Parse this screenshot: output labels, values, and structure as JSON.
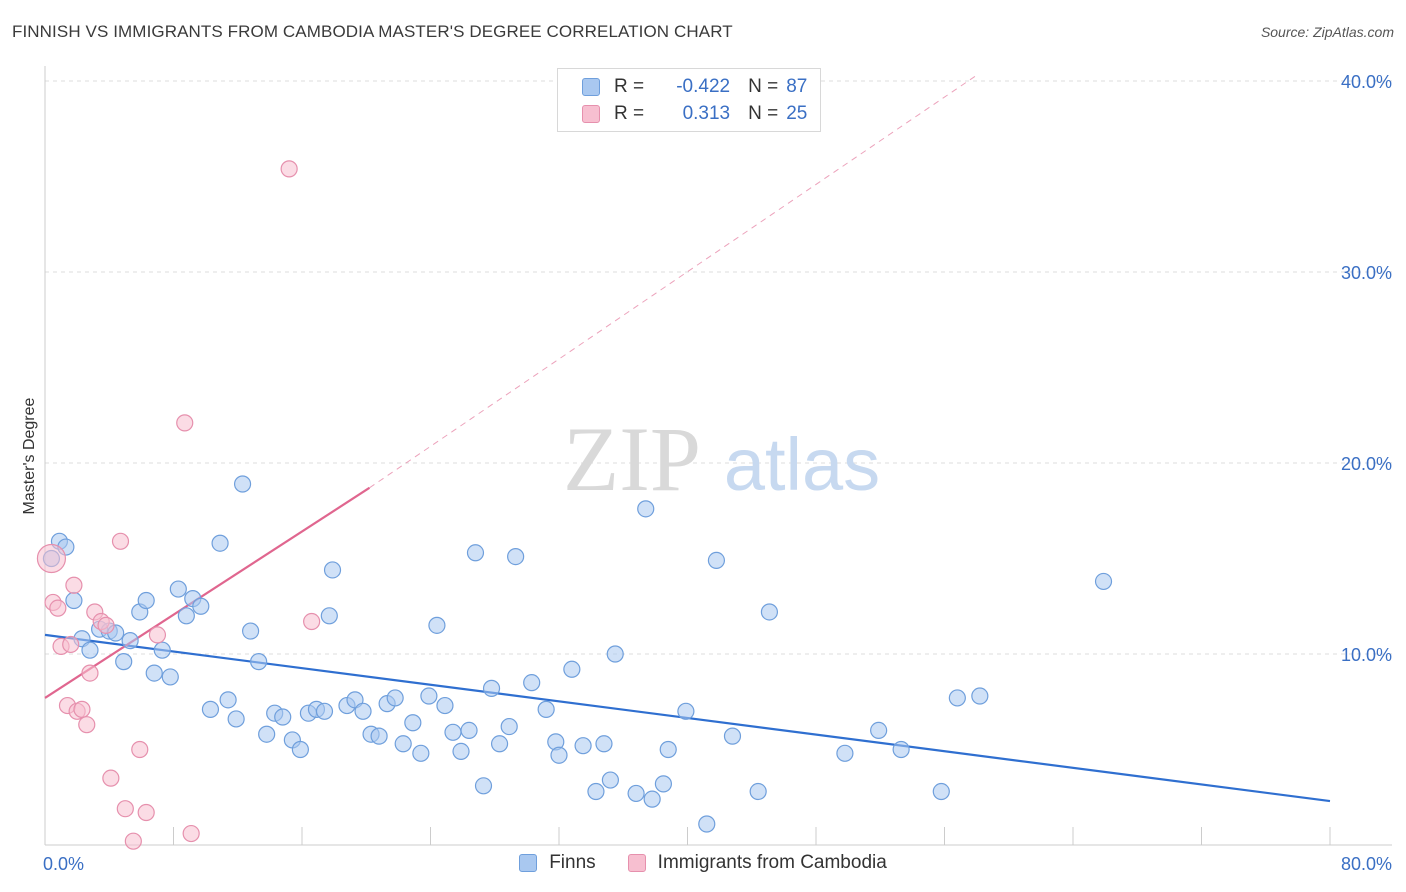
{
  "title": "FINNISH VS IMMIGRANTS FROM CAMBODIA MASTER'S DEGREE CORRELATION CHART",
  "source": "Source: ZipAtlas.com",
  "watermark": {
    "zip": "ZIP",
    "atlas": "atlas"
  },
  "legend": {
    "rows": [
      {
        "r_label": "R =",
        "r_value": "-0.422",
        "n_label": "N =",
        "n_value": "87"
      },
      {
        "r_label": "R =",
        "r_value": "0.313",
        "n_label": "N =",
        "n_value": "25"
      }
    ]
  },
  "colors": {
    "finns_fill": "#a9c8f0",
    "finns_stroke": "#6f9fdc",
    "finns_line": "#2f6fd0",
    "cambodia_fill": "#f7bfd0",
    "cambodia_stroke": "#e690ad",
    "cambodia_line": "#e0668f",
    "tick_label": "#3a6fc4",
    "grid": "#dddddd"
  },
  "chart_data": {
    "type": "scatter",
    "title": "FINNISH VS IMMIGRANTS FROM CAMBODIA MASTER'S DEGREE CORRELATION CHART",
    "xlabel": "",
    "ylabel": "Master's Degree",
    "xlim": [
      0,
      80
    ],
    "ylim": [
      0,
      40
    ],
    "x_tick_labels": [
      "0.0%",
      "80.0%"
    ],
    "y_ticks": [
      10,
      20,
      30,
      40
    ],
    "y_tick_labels": [
      "10.0%",
      "20.0%",
      "30.0%",
      "40.0%"
    ],
    "grid": true,
    "legend_position": "top-center",
    "series": [
      {
        "name": "Finns",
        "points": [
          [
            0.4,
            15.0
          ],
          [
            0.9,
            15.9
          ],
          [
            1.3,
            15.6
          ],
          [
            1.8,
            12.8
          ],
          [
            2.3,
            10.8
          ],
          [
            2.8,
            10.2
          ],
          [
            3.4,
            11.3
          ],
          [
            4.0,
            11.2
          ],
          [
            4.4,
            11.1
          ],
          [
            4.9,
            9.6
          ],
          [
            5.3,
            10.7
          ],
          [
            5.9,
            12.2
          ],
          [
            6.3,
            12.8
          ],
          [
            6.8,
            9.0
          ],
          [
            7.3,
            10.2
          ],
          [
            7.8,
            8.8
          ],
          [
            8.3,
            13.4
          ],
          [
            8.8,
            12.0
          ],
          [
            9.2,
            12.9
          ],
          [
            9.7,
            12.5
          ],
          [
            10.3,
            7.1
          ],
          [
            10.9,
            15.8
          ],
          [
            11.4,
            7.6
          ],
          [
            11.9,
            6.6
          ],
          [
            12.3,
            18.9
          ],
          [
            12.8,
            11.2
          ],
          [
            13.3,
            9.6
          ],
          [
            13.8,
            5.8
          ],
          [
            14.3,
            6.9
          ],
          [
            14.8,
            6.7
          ],
          [
            15.4,
            5.5
          ],
          [
            15.9,
            5.0
          ],
          [
            16.4,
            6.9
          ],
          [
            16.9,
            7.1
          ],
          [
            17.4,
            7.0
          ],
          [
            17.9,
            14.4
          ],
          [
            17.7,
            12.0
          ],
          [
            18.8,
            7.3
          ],
          [
            19.3,
            7.6
          ],
          [
            19.8,
            7.0
          ],
          [
            20.3,
            5.8
          ],
          [
            20.8,
            5.7
          ],
          [
            21.3,
            7.4
          ],
          [
            21.8,
            7.7
          ],
          [
            22.3,
            5.3
          ],
          [
            22.9,
            6.4
          ],
          [
            23.4,
            4.8
          ],
          [
            23.9,
            7.8
          ],
          [
            24.4,
            11.5
          ],
          [
            24.9,
            7.3
          ],
          [
            25.4,
            5.9
          ],
          [
            25.9,
            4.9
          ],
          [
            26.4,
            6.0
          ],
          [
            26.8,
            15.3
          ],
          [
            27.3,
            3.1
          ],
          [
            27.8,
            8.2
          ],
          [
            28.3,
            5.3
          ],
          [
            28.9,
            6.2
          ],
          [
            29.3,
            15.1
          ],
          [
            30.3,
            8.5
          ],
          [
            31.2,
            7.1
          ],
          [
            31.8,
            5.4
          ],
          [
            32.0,
            4.7
          ],
          [
            32.8,
            9.2
          ],
          [
            33.5,
            5.2
          ],
          [
            34.3,
            2.8
          ],
          [
            34.8,
            5.3
          ],
          [
            35.2,
            3.4
          ],
          [
            35.5,
            10.0
          ],
          [
            36.8,
            2.7
          ],
          [
            37.4,
            17.6
          ],
          [
            37.8,
            2.4
          ],
          [
            38.5,
            3.2
          ],
          [
            38.8,
            5.0
          ],
          [
            39.9,
            7.0
          ],
          [
            41.2,
            1.1
          ],
          [
            41.8,
            14.9
          ],
          [
            42.8,
            5.7
          ],
          [
            44.4,
            2.8
          ],
          [
            45.1,
            12.2
          ],
          [
            49.8,
            4.8
          ],
          [
            51.9,
            6.0
          ],
          [
            53.3,
            5.0
          ],
          [
            55.8,
            2.8
          ],
          [
            56.8,
            7.7
          ],
          [
            58.2,
            7.8
          ],
          [
            65.9,
            13.8
          ]
        ]
      },
      {
        "name": "Immigrants from Cambodia",
        "points": [
          [
            0.4,
            15.0
          ],
          [
            0.5,
            12.7
          ],
          [
            0.8,
            12.4
          ],
          [
            1.0,
            10.4
          ],
          [
            1.4,
            7.3
          ],
          [
            1.6,
            10.5
          ],
          [
            1.8,
            13.6
          ],
          [
            2.0,
            7.0
          ],
          [
            2.3,
            7.1
          ],
          [
            2.6,
            6.3
          ],
          [
            2.8,
            9.0
          ],
          [
            3.1,
            12.2
          ],
          [
            3.5,
            11.7
          ],
          [
            3.8,
            11.5
          ],
          [
            4.1,
            3.5
          ],
          [
            4.7,
            15.9
          ],
          [
            5.0,
            1.9
          ],
          [
            5.5,
            0.2
          ],
          [
            5.9,
            5.0
          ],
          [
            6.3,
            1.7
          ],
          [
            7.0,
            11.0
          ],
          [
            8.7,
            22.1
          ],
          [
            9.1,
            0.6
          ],
          [
            15.2,
            35.4
          ],
          [
            16.6,
            11.7
          ]
        ]
      }
    ],
    "trend_lines": [
      {
        "series": "Finns",
        "x": [
          0,
          80
        ],
        "y": [
          11.0,
          2.3
        ]
      },
      {
        "series": "Immigrants from Cambodia",
        "x": [
          0,
          20.2
        ],
        "y": [
          7.7,
          18.7
        ],
        "dashed_extension_x": [
          20.2,
          58.0
        ],
        "dashed_extension_y": [
          18.7,
          40.3
        ]
      }
    ]
  },
  "bottom_legend": [
    {
      "label": "Finns"
    },
    {
      "label": "Immigrants from Cambodia"
    }
  ]
}
